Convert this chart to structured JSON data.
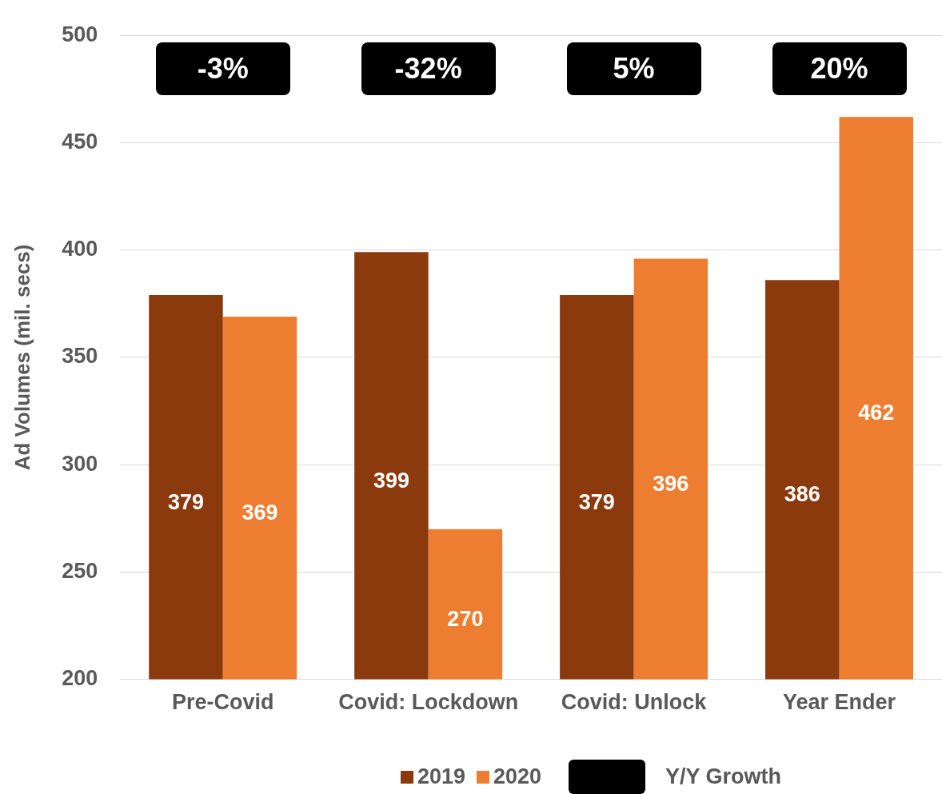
{
  "chart_data": {
    "type": "bar",
    "ylabel": "Ad Volumes (mil. secs)",
    "categories": [
      "Pre-Covid",
      "Covid: Lockdown",
      "Covid: Unlock",
      "Year Ender"
    ],
    "series": [
      {
        "name": "2019",
        "color": "#8b3a0e",
        "values": [
          379,
          399,
          379,
          386
        ]
      },
      {
        "name": "2020",
        "color": "#ed7d31",
        "values": [
          369,
          270,
          396,
          462
        ]
      }
    ],
    "ylim": [
      200,
      500
    ],
    "yticks": [
      200,
      250,
      300,
      350,
      400,
      450,
      500
    ],
    "grid": "y",
    "legend": "bottom",
    "data_labels": true,
    "annotations": [
      "-3%",
      "-32%",
      "5%",
      "20%",
      "Y/Y Growth"
    ]
  }
}
